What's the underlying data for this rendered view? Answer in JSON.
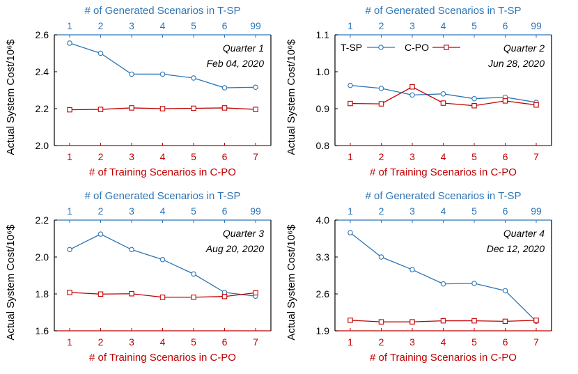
{
  "figure": {
    "ylabel": "Actual System Cost/10⁶$",
    "xlabel_bottom": "# of Training Scenarios in C-PO",
    "xlabel_top": "# of Generated Scenarios in T-SP",
    "legend": [
      {
        "name": "T-SP"
      },
      {
        "name": "C-PO"
      }
    ]
  },
  "colors": {
    "tsp": "#2e75b6",
    "cpo": "#c00000",
    "axis_top": "#2e75b6",
    "axis_bottom": "#c00000",
    "axis_left": "#000000"
  },
  "chart_data": [
    {
      "type": "line",
      "title": "Quarter 1",
      "date": "Feb 04, 2020",
      "bottom_ticks": [
        "1",
        "2",
        "3",
        "4",
        "5",
        "6",
        "7"
      ],
      "top_ticks": [
        "1",
        "2",
        "3",
        "4",
        "5",
        "6",
        "99"
      ],
      "ylim": [
        2.0,
        2.6
      ],
      "yticks": [
        2.0,
        2.2,
        2.4,
        2.6
      ],
      "ytick_labels": [
        "2.0",
        "2.2",
        "2.4",
        "2.6"
      ],
      "legend_shown": false,
      "series": [
        {
          "name": "T-SP",
          "marker": "circle",
          "values": [
            2.555,
            2.5,
            2.387,
            2.387,
            2.366,
            2.313,
            2.316
          ]
        },
        {
          "name": "C-PO",
          "marker": "square",
          "values": [
            2.194,
            2.196,
            2.204,
            2.2,
            2.202,
            2.204,
            2.196
          ]
        }
      ]
    },
    {
      "type": "line",
      "title": "Quarter 2",
      "date": "Jun 28, 2020",
      "bottom_ticks": [
        "1",
        "2",
        "3",
        "4",
        "5",
        "6",
        "7"
      ],
      "top_ticks": [
        "1",
        "2",
        "3",
        "4",
        "5",
        "6",
        "99"
      ],
      "ylim": [
        0.8,
        1.1
      ],
      "yticks": [
        0.8,
        0.9,
        1.0,
        1.1
      ],
      "ytick_labels": [
        "0.8",
        "0.9",
        "1.0",
        "1.1"
      ],
      "legend_shown": true,
      "series": [
        {
          "name": "T-SP",
          "marker": "circle",
          "values": [
            0.963,
            0.955,
            0.937,
            0.94,
            0.927,
            0.931,
            0.917
          ]
        },
        {
          "name": "C-PO",
          "marker": "square",
          "values": [
            0.914,
            0.913,
            0.959,
            0.915,
            0.908,
            0.921,
            0.91
          ]
        }
      ]
    },
    {
      "type": "line",
      "title": "Quarter 3",
      "date": "Aug 20, 2020",
      "bottom_ticks": [
        "1",
        "2",
        "3",
        "4",
        "5",
        "6",
        "7"
      ],
      "top_ticks": [
        "1",
        "2",
        "3",
        "4",
        "5",
        "6",
        "99"
      ],
      "ylim": [
        1.6,
        2.2
      ],
      "yticks": [
        1.6,
        1.8,
        2.0,
        2.2
      ],
      "ytick_labels": [
        "1.6",
        "1.8",
        "2.0",
        "2.2"
      ],
      "legend_shown": false,
      "series": [
        {
          "name": "T-SP",
          "marker": "circle",
          "values": [
            2.04,
            2.124,
            2.04,
            1.986,
            1.908,
            1.808,
            1.788
          ]
        },
        {
          "name": "C-PO",
          "marker": "square",
          "values": [
            1.808,
            1.799,
            1.801,
            1.782,
            1.782,
            1.786,
            1.806
          ]
        }
      ]
    },
    {
      "type": "line",
      "title": "Quarter 4",
      "date": "Dec 12, 2020",
      "bottom_ticks": [
        "1",
        "2",
        "3",
        "4",
        "5",
        "6",
        "7"
      ],
      "top_ticks": [
        "1",
        "2",
        "3",
        "4",
        "5",
        "6",
        "99"
      ],
      "ylim": [
        1.9,
        4.0
      ],
      "yticks": [
        1.9,
        2.6,
        3.3,
        4.0
      ],
      "ytick_labels": [
        "1.9",
        "2.6",
        "3.3",
        "4.0"
      ],
      "legend_shown": false,
      "series": [
        {
          "name": "T-SP",
          "marker": "circle",
          "values": [
            3.76,
            3.3,
            3.06,
            2.79,
            2.8,
            2.66,
            2.08
          ]
        },
        {
          "name": "C-PO",
          "marker": "square",
          "values": [
            2.1,
            2.07,
            2.07,
            2.09,
            2.09,
            2.08,
            2.1
          ]
        }
      ]
    }
  ]
}
